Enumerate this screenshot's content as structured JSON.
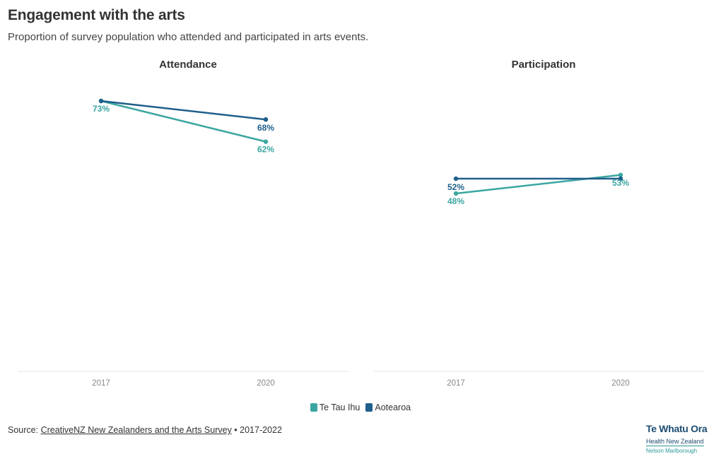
{
  "header": {
    "title": "Engagement with the arts",
    "subtitle": "Proportion of survey population who attended and participated in arts events."
  },
  "colors": {
    "te_tau_ihu": "#3ba6a1",
    "aotearoa": "#1f5f8b",
    "axis": "#e6e6e6",
    "tick_text": "#888888"
  },
  "chart_data": [
    {
      "type": "line",
      "title": "Attendance",
      "x": [
        "2017",
        "2020"
      ],
      "ylim": [
        0,
        100
      ],
      "series": [
        {
          "name": "Te Tau Ihu",
          "color": "#3ba6a1",
          "values": [
            73,
            62
          ],
          "labels": [
            "73%",
            "62%"
          ]
        },
        {
          "name": "Aotearoa",
          "color": "#1f5f8b",
          "values": [
            73,
            68
          ],
          "labels": [
            "",
            "68%"
          ]
        }
      ]
    },
    {
      "type": "line",
      "title": "Participation",
      "x": [
        "2017",
        "2020"
      ],
      "ylim": [
        0,
        100
      ],
      "series": [
        {
          "name": "Te Tau Ihu",
          "color": "#3ba6a1",
          "values": [
            48,
            53
          ],
          "labels": [
            "48%",
            "53%"
          ]
        },
        {
          "name": "Aotearoa",
          "color": "#1f5f8b",
          "values": [
            52,
            52
          ],
          "labels": [
            "52%",
            ""
          ]
        }
      ]
    }
  ],
  "legend": {
    "items": [
      {
        "label": "Te Tau Ihu",
        "color": "#3ba6a1"
      },
      {
        "label": "Aotearoa",
        "color": "#1f5f8b"
      }
    ]
  },
  "source": {
    "prefix": "Source: ",
    "link_text": "CreativeNZ New Zealanders and the Arts Survey",
    "suffix": " • 2017-2022"
  },
  "logo": {
    "line1": "Te Whatu Ora",
    "line2": "Health New Zealand",
    "line3": "Nelson Marlborough"
  }
}
